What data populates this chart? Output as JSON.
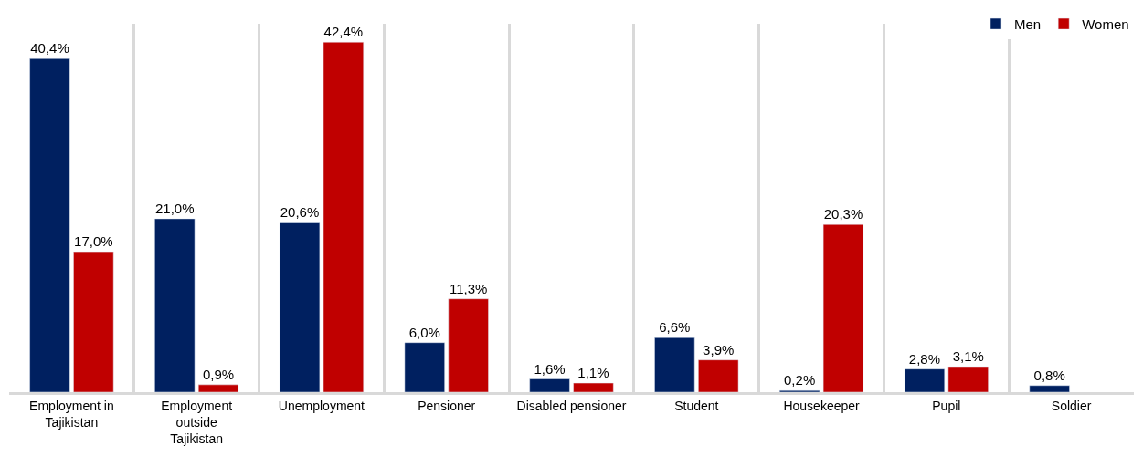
{
  "chart_data": {
    "type": "bar",
    "categories": [
      "Employment in Tajikistan",
      "Employment outside Tajikistan",
      "Unemployment",
      "Pensioner",
      "Disabled pensioner",
      "Student",
      "Housekeeper",
      "Pupil",
      "Soldier"
    ],
    "series": [
      {
        "name": "Men",
        "color": "#002060",
        "values": [
          40.4,
          21.0,
          20.6,
          6.0,
          1.6,
          6.6,
          0.2,
          2.8,
          0.8
        ],
        "value_labels": [
          "40,4%",
          "21,0%",
          "20,6%",
          "6,0%",
          "1,6%",
          "6,6%",
          "0,2%",
          "2,8%",
          "0,8%"
        ]
      },
      {
        "name": "Women",
        "color": "#c00000",
        "values": [
          17.0,
          0.9,
          42.4,
          11.3,
          1.1,
          3.9,
          20.3,
          3.1,
          null
        ],
        "value_labels": [
          "17,0%",
          "0,9%",
          "42,4%",
          "11,3%",
          "1,1%",
          "3,9%",
          "20,3%",
          "3,1%",
          null
        ]
      }
    ],
    "grid": "x",
    "legend": "top right"
  }
}
